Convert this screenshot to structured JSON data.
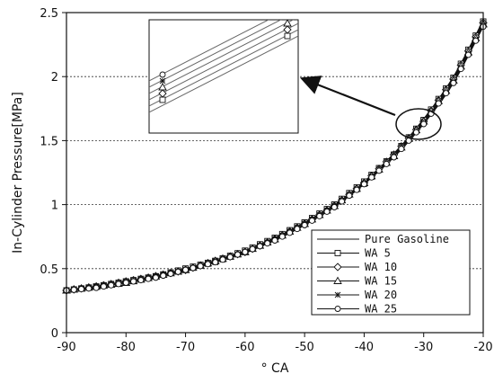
{
  "chart_data": {
    "type": "line",
    "title": "",
    "xlabel": "° CA",
    "ylabel": "In-Cylinder Pressure[MPa]",
    "xlim": [
      -90,
      -20
    ],
    "ylim": [
      0,
      2.5
    ],
    "x_ticks": [
      -90,
      -80,
      -70,
      -60,
      -50,
      -40,
      -30,
      -20
    ],
    "y_ticks": [
      0,
      0.5,
      1,
      1.5,
      2,
      2.5
    ],
    "x_tick_labels": [
      "-90",
      "-80",
      "-70",
      "-60",
      "-50",
      "-40",
      "-30",
      "-20"
    ],
    "y_tick_labels": [
      "0",
      "0.5",
      "1",
      "1.5",
      "2",
      "2.5"
    ],
    "grid": "horizontal dashed at y = 0.5, 1, 1.5, 2",
    "legend_position": "bottom-right",
    "x": [
      -90,
      -85,
      -80,
      -75,
      -70,
      -65,
      -60,
      -55,
      -50,
      -45,
      -40,
      -35,
      -30,
      -25,
      -20
    ],
    "series": [
      {
        "name": "Pure Gasoline",
        "marker": "none",
        "values": [
          0.33,
          0.36,
          0.4,
          0.44,
          0.5,
          0.56,
          0.64,
          0.74,
          0.86,
          1.0,
          1.18,
          1.4,
          1.67,
          2.0,
          2.44
        ]
      },
      {
        "name": "WA 5",
        "marker": "square",
        "values": [
          0.33,
          0.36,
          0.4,
          0.44,
          0.5,
          0.56,
          0.64,
          0.74,
          0.86,
          1.0,
          1.18,
          1.39,
          1.66,
          1.99,
          2.43
        ]
      },
      {
        "name": "WA 10",
        "marker": "diamond",
        "values": [
          0.33,
          0.36,
          0.4,
          0.44,
          0.49,
          0.56,
          0.63,
          0.73,
          0.85,
          0.99,
          1.17,
          1.39,
          1.65,
          1.98,
          2.42
        ]
      },
      {
        "name": "WA 15",
        "marker": "triangle",
        "values": [
          0.33,
          0.36,
          0.39,
          0.44,
          0.49,
          0.56,
          0.63,
          0.73,
          0.85,
          0.99,
          1.17,
          1.38,
          1.65,
          1.97,
          2.41
        ]
      },
      {
        "name": "WA 20",
        "marker": "star",
        "values": [
          0.33,
          0.36,
          0.39,
          0.44,
          0.49,
          0.55,
          0.63,
          0.73,
          0.85,
          0.99,
          1.16,
          1.38,
          1.64,
          1.96,
          2.4
        ]
      },
      {
        "name": "WA 25",
        "marker": "circle",
        "values": [
          0.33,
          0.35,
          0.39,
          0.43,
          0.49,
          0.55,
          0.63,
          0.72,
          0.84,
          0.98,
          1.16,
          1.37,
          1.63,
          1.95,
          2.39
        ]
      }
    ],
    "annotation": "zoom inset of the curves around -31 ° CA, highlighted by an ellipse with an arrow pointing to the inset"
  },
  "colors": {
    "line": "#111111",
    "grid": "#333333",
    "background": "#ffffff"
  }
}
